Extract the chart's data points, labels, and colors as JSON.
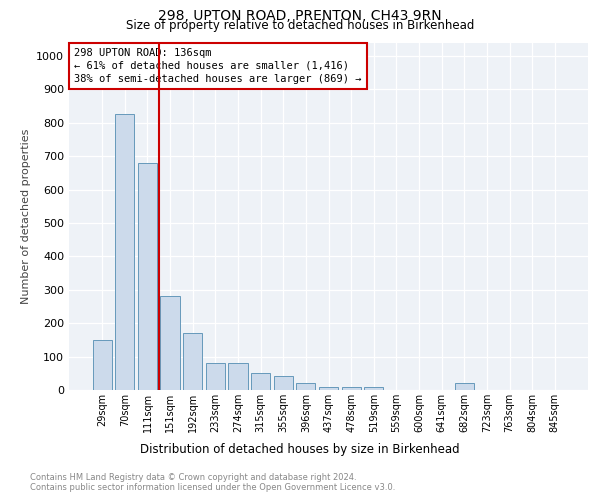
{
  "title1": "298, UPTON ROAD, PRENTON, CH43 9RN",
  "title2": "Size of property relative to detached houses in Birkenhead",
  "xlabel": "Distribution of detached houses by size in Birkenhead",
  "ylabel": "Number of detached properties",
  "categories": [
    "29sqm",
    "70sqm",
    "111sqm",
    "151sqm",
    "192sqm",
    "233sqm",
    "274sqm",
    "315sqm",
    "355sqm",
    "396sqm",
    "437sqm",
    "478sqm",
    "519sqm",
    "559sqm",
    "600sqm",
    "641sqm",
    "682sqm",
    "723sqm",
    "763sqm",
    "804sqm",
    "845sqm"
  ],
  "values": [
    150,
    825,
    680,
    280,
    170,
    80,
    80,
    50,
    42,
    22,
    10,
    10,
    10,
    0,
    0,
    0,
    20,
    0,
    0,
    0,
    0
  ],
  "bar_color": "#ccdaeb",
  "bar_edge_color": "#6699bb",
  "vline_color": "#cc0000",
  "annotation_title": "298 UPTON ROAD: 136sqm",
  "annotation_line1": "← 61% of detached houses are smaller (1,416)",
  "annotation_line2": "38% of semi-detached houses are larger (869) →",
  "annotation_box_color": "#cc0000",
  "ylim": [
    0,
    1040
  ],
  "yticks": [
    0,
    100,
    200,
    300,
    400,
    500,
    600,
    700,
    800,
    900,
    1000
  ],
  "footnote1": "Contains HM Land Registry data © Crown copyright and database right 2024.",
  "footnote2": "Contains public sector information licensed under the Open Government Licence v3.0.",
  "bg_color": "#eef2f7",
  "fig_bg_color": "#ffffff"
}
